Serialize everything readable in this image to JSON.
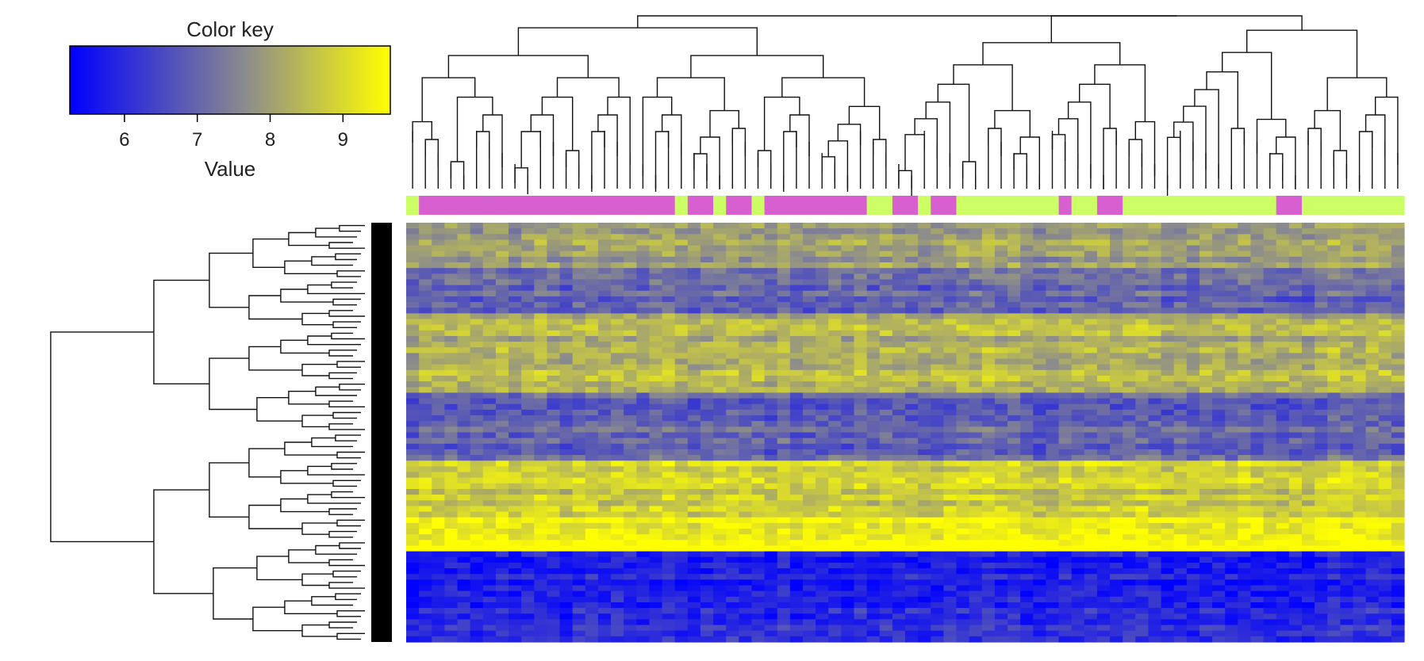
{
  "chart_data": {
    "type": "heatmap",
    "title": "",
    "xlabel": "",
    "ylabel": "",
    "color_key": {
      "title": "Color key",
      "label": "Value",
      "ticks": [
        "6",
        "7",
        "8",
        "9"
      ],
      "tick_values": [
        6,
        7,
        8,
        9
      ],
      "range": [
        5.25,
        9.65
      ],
      "colors": {
        "low": "#0000ff",
        "mid": "#8c8c8c",
        "high": "#ffff00"
      }
    },
    "column_groups": {
      "colors": {
        "A": "#d75fd0",
        "B": "#ccff66"
      },
      "sequence": [
        "B",
        "A",
        "A",
        "A",
        "A",
        "A",
        "A",
        "A",
        "A",
        "A",
        "A",
        "A",
        "A",
        "A",
        "A",
        "A",
        "A",
        "A",
        "A",
        "A",
        "A",
        "B",
        "A",
        "A",
        "B",
        "A",
        "A",
        "B",
        "A",
        "A",
        "A",
        "A",
        "A",
        "A",
        "A",
        "A",
        "B",
        "B",
        "A",
        "A",
        "B",
        "A",
        "A",
        "B",
        "B",
        "B",
        "B",
        "B",
        "B",
        "B",
        "B",
        "A",
        "B",
        "B",
        "A",
        "A",
        "B",
        "B",
        "B",
        "B",
        "B",
        "B",
        "B",
        "B",
        "B",
        "B",
        "B",
        "B",
        "A",
        "A",
        "B",
        "B",
        "B",
        "B",
        "B",
        "B",
        "B",
        "B"
      ]
    },
    "row_blocks": [
      {
        "rows": 8,
        "mean": 7.9
      },
      {
        "rows": 8,
        "mean": 7.0
      },
      {
        "rows": 14,
        "mean": 8.3
      },
      {
        "rows": 12,
        "mean": 6.9
      },
      {
        "rows": 10,
        "mean": 8.8
      },
      {
        "rows": 4,
        "mean": 9.4
      },
      {
        "rows": 2,
        "mean": 9.7
      },
      {
        "rows": 16,
        "mean": 5.9
      }
    ]
  }
}
